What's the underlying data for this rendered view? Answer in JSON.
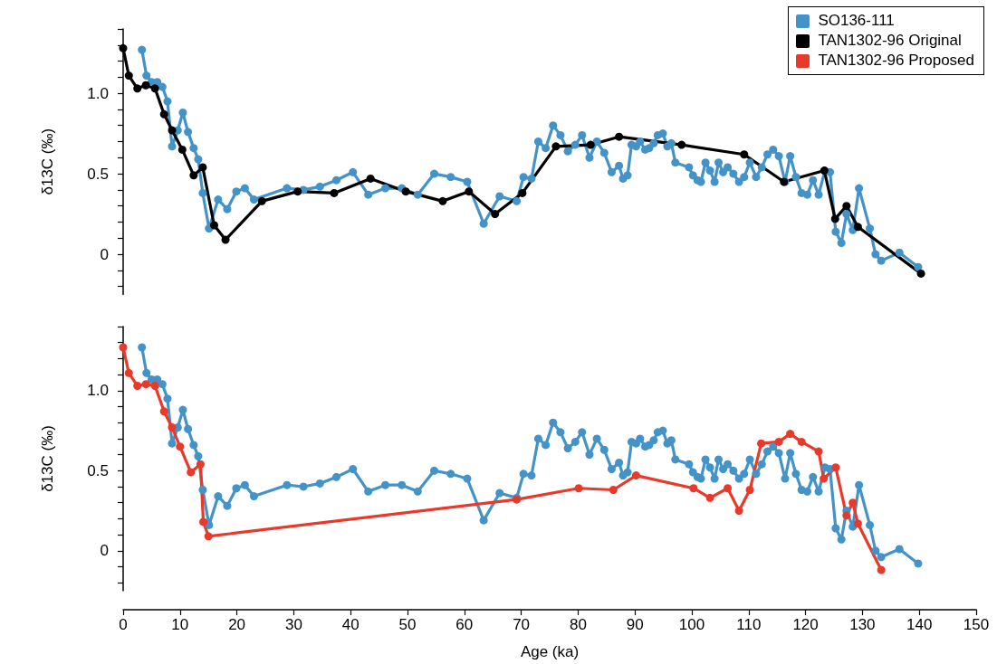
{
  "chart_data": [
    {
      "type": "line",
      "ylabel": "δ13C (‰)",
      "xlim": [
        0,
        150
      ],
      "ylim": [
        -0.25,
        1.4
      ],
      "tick_labels": "y",
      "legend": "top right",
      "marker": "circle",
      "line_style": "solid",
      "grid": false,
      "yticks": [
        {
          "value": -0.2,
          "label": null
        },
        {
          "value": -0.1,
          "label": null
        },
        {
          "value": 0,
          "label": "0"
        },
        {
          "value": 0.1,
          "label": null
        },
        {
          "value": 0.2,
          "label": null
        },
        {
          "value": 0.3,
          "label": null
        },
        {
          "value": 0.4,
          "label": null
        },
        {
          "value": 0.5,
          "label": "0.5"
        },
        {
          "value": 0.6,
          "label": null
        },
        {
          "value": 0.7,
          "label": null
        },
        {
          "value": 0.8,
          "label": null
        },
        {
          "value": 0.9,
          "label": null
        },
        {
          "value": 1.0,
          "label": "1.0"
        },
        {
          "value": 1.1,
          "label": null
        },
        {
          "value": 1.2,
          "label": null
        },
        {
          "value": 1.3,
          "label": null
        },
        {
          "value": 1.4,
          "label": null
        }
      ],
      "series": [
        {
          "name": "SO136-111",
          "color": "#4393c9",
          "x": [
            3.3,
            4.1,
            5.0,
            6.0,
            6.9,
            7.8,
            8.6,
            9.6,
            10.5,
            11.4,
            12.4,
            13.2,
            14.0,
            15.1,
            16.7,
            18.3,
            19.9,
            21.4,
            23.0,
            28.8,
            31.7,
            34.6,
            37.5,
            40.4,
            43.1,
            46.1,
            49.0,
            51.8,
            54.7,
            57.6,
            60.5,
            63.4,
            66.2,
            69.2,
            70.4,
            71.8,
            73.0,
            74.3,
            75.6,
            76.9,
            78.2,
            79.5,
            80.7,
            82.0,
            83.3,
            84.6,
            85.9,
            87.2,
            87.9,
            88.7,
            89.4,
            90.2,
            90.9,
            91.8,
            92.5,
            93.3,
            94.0,
            94.9,
            95.7,
            96.4,
            97.1,
            99.5,
            100.2,
            101.0,
            101.6,
            102.4,
            103.2,
            104.0,
            104.7,
            105.5,
            106.3,
            107.3,
            108.3,
            109.2,
            110.2,
            111.3,
            112.3,
            113.3,
            114.3,
            115.3,
            116.4,
            117.3,
            118.3,
            119.3,
            120.3,
            121.3,
            122.3,
            123.4,
            124.3,
            125.3,
            126.3,
            127.2,
            128.3,
            129.4,
            131.3,
            132.3,
            133.3,
            136.5,
            139.8
          ],
          "values": [
            1.27,
            1.11,
            1.07,
            1.07,
            1.04,
            0.95,
            0.67,
            0.77,
            0.88,
            0.76,
            0.66,
            0.59,
            0.38,
            0.16,
            0.34,
            0.28,
            0.39,
            0.41,
            0.34,
            0.41,
            0.4,
            0.42,
            0.46,
            0.51,
            0.37,
            0.41,
            0.41,
            0.37,
            0.5,
            0.48,
            0.45,
            0.19,
            0.36,
            0.33,
            0.48,
            0.47,
            0.7,
            0.66,
            0.8,
            0.74,
            0.64,
            0.68,
            0.74,
            0.6,
            0.7,
            0.63,
            0.51,
            0.55,
            0.47,
            0.49,
            0.68,
            0.67,
            0.7,
            0.65,
            0.66,
            0.69,
            0.74,
            0.75,
            0.67,
            0.69,
            0.57,
            0.54,
            0.49,
            0.46,
            0.45,
            0.57,
            0.52,
            0.45,
            0.57,
            0.51,
            0.54,
            0.5,
            0.45,
            0.48,
            0.57,
            0.48,
            0.54,
            0.62,
            0.65,
            0.61,
            0.45,
            0.61,
            0.48,
            0.38,
            0.37,
            0.46,
            0.37,
            0.52,
            0.51,
            0.14,
            0.07,
            0.25,
            0.15,
            0.41,
            0.16,
            0.0,
            -0.04,
            0.01,
            -0.08
          ]
        },
        {
          "name": "TAN1302-96 Original",
          "color": "#000000",
          "x": [
            0,
            1.0,
            2.5,
            4.0,
            5.6,
            7.2,
            8.6,
            10.4,
            12.4,
            14.0,
            16.0,
            18.0,
            24.4,
            30.7,
            37.1,
            43.5,
            49.7,
            56.2,
            60.8,
            65.4,
            70.2,
            76.1,
            82.2,
            87.2,
            98.2,
            109.2,
            116.2,
            123.3,
            125.2,
            127.2,
            129.2,
            140.3
          ],
          "values": [
            1.28,
            1.11,
            1.03,
            1.05,
            1.03,
            0.87,
            0.77,
            0.65,
            0.49,
            0.54,
            0.18,
            0.09,
            0.33,
            0.39,
            0.38,
            0.47,
            0.39,
            0.33,
            0.39,
            0.25,
            0.38,
            0.67,
            0.68,
            0.73,
            0.68,
            0.62,
            0.45,
            0.52,
            0.22,
            0.3,
            0.17,
            -0.12
          ]
        }
      ]
    },
    {
      "type": "line",
      "ylabel": "δ13C (‰)",
      "xlabel": "Age (ka)",
      "xlim": [
        0,
        150
      ],
      "xticks": [
        0,
        10,
        20,
        30,
        40,
        50,
        60,
        70,
        80,
        90,
        100,
        110,
        120,
        130,
        140,
        150
      ],
      "ylim": [
        -0.25,
        1.4
      ],
      "marker": "circle",
      "line_style": "solid",
      "grid": false,
      "yticks": [
        {
          "value": -0.2,
          "label": null
        },
        {
          "value": -0.1,
          "label": null
        },
        {
          "value": 0,
          "label": "0"
        },
        {
          "value": 0.1,
          "label": null
        },
        {
          "value": 0.2,
          "label": null
        },
        {
          "value": 0.3,
          "label": null
        },
        {
          "value": 0.4,
          "label": null
        },
        {
          "value": 0.5,
          "label": "0.5"
        },
        {
          "value": 0.6,
          "label": null
        },
        {
          "value": 0.7,
          "label": null
        },
        {
          "value": 0.8,
          "label": null
        },
        {
          "value": 0.9,
          "label": null
        },
        {
          "value": 1.0,
          "label": "1.0"
        },
        {
          "value": 1.1,
          "label": null
        },
        {
          "value": 1.2,
          "label": null
        },
        {
          "value": 1.3,
          "label": null
        },
        {
          "value": 1.4,
          "label": null
        }
      ],
      "series": [
        {
          "name": "SO136-111",
          "color": "#4393c9",
          "x": [
            3.3,
            4.1,
            5.0,
            6.0,
            6.9,
            7.8,
            8.6,
            9.6,
            10.5,
            11.4,
            12.4,
            13.2,
            14.0,
            15.1,
            16.7,
            18.3,
            19.9,
            21.4,
            23.0,
            28.8,
            31.7,
            34.6,
            37.5,
            40.4,
            43.1,
            46.1,
            49.0,
            51.8,
            54.7,
            57.6,
            60.5,
            63.4,
            66.2,
            69.2,
            70.4,
            71.8,
            73.0,
            74.3,
            75.6,
            76.9,
            78.2,
            79.5,
            80.7,
            82.0,
            83.3,
            84.6,
            85.9,
            87.2,
            87.9,
            88.7,
            89.4,
            90.2,
            90.9,
            91.8,
            92.5,
            93.3,
            94.0,
            94.9,
            95.7,
            96.4,
            97.1,
            99.5,
            100.2,
            101.0,
            101.6,
            102.4,
            103.2,
            104.0,
            104.7,
            105.5,
            106.3,
            107.3,
            108.3,
            109.2,
            110.2,
            111.3,
            112.3,
            113.3,
            114.3,
            115.3,
            116.4,
            117.3,
            118.3,
            119.3,
            120.3,
            121.3,
            122.3,
            123.4,
            124.3,
            125.3,
            126.3,
            127.2,
            128.3,
            129.4,
            131.3,
            132.3,
            133.3,
            136.5,
            139.8
          ],
          "values": [
            1.27,
            1.11,
            1.07,
            1.07,
            1.04,
            0.95,
            0.67,
            0.77,
            0.88,
            0.76,
            0.66,
            0.59,
            0.38,
            0.16,
            0.34,
            0.28,
            0.39,
            0.41,
            0.34,
            0.41,
            0.4,
            0.42,
            0.46,
            0.51,
            0.37,
            0.41,
            0.41,
            0.37,
            0.5,
            0.48,
            0.45,
            0.19,
            0.36,
            0.33,
            0.48,
            0.47,
            0.7,
            0.66,
            0.8,
            0.74,
            0.64,
            0.68,
            0.74,
            0.6,
            0.7,
            0.63,
            0.51,
            0.55,
            0.47,
            0.49,
            0.68,
            0.67,
            0.7,
            0.65,
            0.66,
            0.69,
            0.74,
            0.75,
            0.67,
            0.69,
            0.57,
            0.54,
            0.49,
            0.46,
            0.45,
            0.57,
            0.52,
            0.45,
            0.57,
            0.51,
            0.54,
            0.5,
            0.45,
            0.48,
            0.57,
            0.48,
            0.54,
            0.62,
            0.65,
            0.61,
            0.45,
            0.61,
            0.48,
            0.38,
            0.37,
            0.46,
            0.37,
            0.52,
            0.51,
            0.14,
            0.07,
            0.25,
            0.15,
            0.41,
            0.16,
            0.0,
            -0.04,
            0.01,
            -0.08
          ]
        },
        {
          "name": "TAN1302-96 Proposed",
          "color": "#e8392a",
          "x": [
            0,
            1.0,
            2.5,
            4.0,
            5.6,
            7.2,
            8.6,
            10.0,
            11.9,
            13.6,
            14.1,
            15.0,
            69.2,
            80.1,
            86.2,
            90.2,
            100.3,
            103.2,
            106.3,
            108.3,
            110.2,
            112.2,
            115.3,
            117.3,
            119.3,
            122.3,
            123.2,
            125.3,
            127.2,
            128.3,
            129.2,
            133.3
          ],
          "values": [
            1.27,
            1.11,
            1.03,
            1.04,
            1.03,
            0.87,
            0.77,
            0.65,
            0.49,
            0.54,
            0.18,
            0.09,
            0.32,
            0.39,
            0.38,
            0.47,
            0.39,
            0.33,
            0.39,
            0.25,
            0.38,
            0.67,
            0.68,
            0.73,
            0.68,
            0.62,
            0.45,
            0.52,
            0.22,
            0.3,
            0.17,
            -0.12
          ]
        }
      ]
    }
  ]
}
